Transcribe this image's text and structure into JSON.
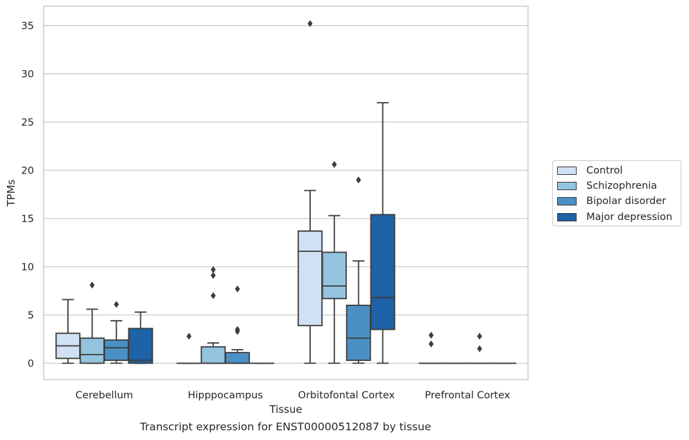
{
  "chart_data": {
    "type": "box",
    "xlabel": "Tissue",
    "ylabel": "TPMs",
    "ylim": [
      -1.7,
      37
    ],
    "yticks": [
      0,
      5,
      10,
      15,
      20,
      25,
      30,
      35
    ],
    "grid": "horizontal",
    "legend_position": "right",
    "categories": [
      "Cerebellum",
      "Hipppocampus",
      "Orbitofontal Cortex",
      "Prefrontal Cortex"
    ],
    "series": [
      {
        "name": "Control",
        "color": "#cfe1f2",
        "boxes": [
          {
            "whislo": 0,
            "q1": 0.5,
            "med": 1.8,
            "q3": 3.1,
            "whishi": 6.6,
            "fliers": []
          },
          {
            "whislo": 0,
            "q1": 0,
            "med": 0,
            "q3": 0,
            "whishi": 0,
            "fliers": [
              2.8
            ]
          },
          {
            "whislo": 0,
            "q1": 3.9,
            "med": 11.6,
            "q3": 13.7,
            "whishi": 17.9,
            "fliers": [
              35.2
            ]
          },
          {
            "whislo": 0,
            "q1": 0,
            "med": 0,
            "q3": 0,
            "whishi": 0,
            "fliers": [
              2.0,
              2.9
            ]
          }
        ]
      },
      {
        "name": "Schizophrenia",
        "color": "#93c4de",
        "boxes": [
          {
            "whislo": 0,
            "q1": 0,
            "med": 0.9,
            "q3": 2.6,
            "whishi": 5.6,
            "fliers": [
              8.1
            ]
          },
          {
            "whislo": 0,
            "q1": 0,
            "med": 0,
            "q3": 1.7,
            "whishi": 2.1,
            "fliers": [
              7.0,
              9.1,
              9.7
            ]
          },
          {
            "whislo": 0,
            "q1": 6.7,
            "med": 8.0,
            "q3": 11.5,
            "whishi": 15.3,
            "fliers": [
              20.6
            ]
          },
          {
            "whislo": 0,
            "q1": 0,
            "med": 0,
            "q3": 0,
            "whishi": 0,
            "fliers": []
          }
        ]
      },
      {
        "name": "Bipolar disorder",
        "color": "#4a90c4",
        "boxes": [
          {
            "whislo": 0,
            "q1": 0.3,
            "med": 1.6,
            "q3": 2.4,
            "whishi": 4.4,
            "fliers": [
              6.1
            ]
          },
          {
            "whislo": 0,
            "q1": 0,
            "med": 0,
            "q3": 1.1,
            "whishi": 1.4,
            "fliers": [
              3.3,
              3.5,
              7.7
            ]
          },
          {
            "whislo": 0,
            "q1": 0.3,
            "med": 2.6,
            "q3": 6.0,
            "whishi": 10.6,
            "fliers": [
              19.0
            ]
          },
          {
            "whislo": 0,
            "q1": 0,
            "med": 0,
            "q3": 0,
            "whishi": 0,
            "fliers": [
              1.5,
              2.8
            ]
          }
        ]
      },
      {
        "name": "Major depression",
        "color": "#1e62a8",
        "boxes": [
          {
            "whislo": 0,
            "q1": 0,
            "med": 0.3,
            "q3": 3.6,
            "whishi": 5.3,
            "fliers": []
          },
          {
            "whislo": 0,
            "q1": 0,
            "med": 0,
            "q3": 0,
            "whishi": 0,
            "fliers": []
          },
          {
            "whislo": 0,
            "q1": 3.5,
            "med": 6.8,
            "q3": 15.4,
            "whishi": 27.0,
            "fliers": []
          },
          {
            "whislo": 0,
            "q1": 0,
            "med": 0,
            "q3": 0,
            "whishi": 0,
            "fliers": []
          }
        ]
      }
    ]
  },
  "caption": "Transcript expression for ENST00000512087 by tissue"
}
